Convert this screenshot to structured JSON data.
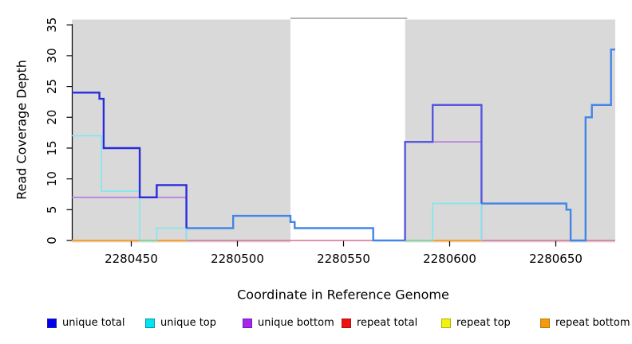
{
  "chart_data": {
    "type": "line",
    "title": "",
    "xlabel": "Coordinate in Reference Genome",
    "ylabel": "Read Coverage Depth",
    "x_range": [
      2280422,
      2280678
    ],
    "y_range": [
      0,
      36
    ],
    "x_ticks": [
      2280450,
      2280500,
      2280550,
      2280600,
      2280650
    ],
    "y_ticks": [
      0,
      5,
      10,
      15,
      20,
      25,
      30,
      35
    ],
    "grid": false,
    "legend_position": "bottom",
    "shaded_regions": [
      {
        "name": "covered-region-left",
        "x0": 2280422,
        "x1": 2280525,
        "color": "#d9d9d9"
      },
      {
        "name": "covered-region-right",
        "x0": 2280579,
        "x1": 2280678,
        "color": "#d9d9d9"
      }
    ],
    "gap_top_border": {
      "x0": 2280525,
      "x1": 2280580,
      "y": 36,
      "color": "#9a9a9a"
    },
    "series": [
      {
        "name": "repeat-total-baseline",
        "color": "#dd6a92",
        "width": 1.6,
        "points": [
          [
            2280422,
            0
          ],
          [
            2280678,
            0
          ]
        ]
      },
      {
        "name": "repeat-bottom-baseline-left",
        "color": "#ff9d1e",
        "width": 2,
        "points": [
          [
            2280422,
            0
          ],
          [
            2280476,
            0
          ]
        ]
      },
      {
        "name": "repeat-bottom-baseline-right",
        "color": "#ff9d1e",
        "width": 2,
        "points": [
          [
            2280592,
            0
          ],
          [
            2280615,
            0
          ]
        ]
      },
      {
        "name": "top-strand-overlap-baseline-left",
        "color": "#82d79e",
        "width": 2,
        "points": [
          [
            2280454,
            0
          ],
          [
            2280462,
            0
          ]
        ]
      },
      {
        "name": "top-strand-overlap-baseline-right",
        "color": "#82d79e",
        "width": 2,
        "points": [
          [
            2280579,
            0
          ],
          [
            2280592,
            0
          ]
        ]
      },
      {
        "name": "unique-bottom-left",
        "color": "#b478e0",
        "width": 1.6,
        "points": [
          [
            2280422,
            7
          ],
          [
            2280476,
            0
          ]
        ]
      },
      {
        "name": "unique-bottom-right",
        "color": "#b478e0",
        "width": 1.6,
        "points": [
          [
            2280579,
            0
          ],
          [
            2280579,
            16
          ],
          [
            2280615,
            0
          ]
        ]
      },
      {
        "name": "unique-top-left",
        "color": "#7de9ee",
        "width": 1.6,
        "points": [
          [
            2280422,
            17
          ],
          [
            2280436,
            8
          ],
          [
            2280454,
            0
          ]
        ]
      },
      {
        "name": "unique-top-mid",
        "color": "#7de9ee",
        "width": 1.6,
        "points": [
          [
            2280462,
            0
          ],
          [
            2280462,
            2
          ],
          [
            2280476,
            0
          ]
        ]
      },
      {
        "name": "unique-top-right",
        "color": "#7de9ee",
        "width": 1.6,
        "points": [
          [
            2280592,
            0
          ],
          [
            2280592,
            6
          ],
          [
            2280615,
            0
          ]
        ]
      },
      {
        "name": "total-coverage-mid",
        "color": "#4285e8",
        "width": 2.4,
        "points": [
          [
            2280476,
            2
          ],
          [
            2280498,
            4
          ],
          [
            2280525,
            3
          ],
          [
            2280527,
            2
          ],
          [
            2280564,
            0
          ],
          [
            2280579,
            0
          ]
        ]
      },
      {
        "name": "total-coverage-right",
        "color": "#4285e8",
        "width": 2.4,
        "points": [
          [
            2280615,
            6
          ],
          [
            2280655,
            5
          ],
          [
            2280657,
            0
          ],
          [
            2280664,
            20
          ],
          [
            2280667,
            22
          ],
          [
            2280676,
            31
          ],
          [
            2280678,
            31
          ]
        ]
      },
      {
        "name": "unique-total-left",
        "color": "#2a2ade",
        "width": 2.4,
        "points": [
          [
            2280422,
            24
          ],
          [
            2280435,
            23
          ],
          [
            2280437,
            15
          ],
          [
            2280454,
            7
          ],
          [
            2280462,
            9
          ],
          [
            2280476,
            2
          ]
        ]
      },
      {
        "name": "unique-total-right",
        "color": "#5656e0",
        "width": 2.4,
        "points": [
          [
            2280579,
            0
          ],
          [
            2280579,
            16
          ],
          [
            2280592,
            22
          ],
          [
            2280615,
            6
          ]
        ]
      }
    ],
    "legend": [
      {
        "label": "unique total",
        "fill": "#0000ee",
        "border": "#2222aa"
      },
      {
        "label": "unique top",
        "fill": "#00e5ee",
        "border": "#0092b4"
      },
      {
        "label": "unique bottom",
        "fill": "#a826ec",
        "border": "#7a1bb4"
      },
      {
        "label": "repeat total",
        "fill": "#ee1111",
        "border": "#aa1111"
      },
      {
        "label": "repeat top",
        "fill": "#f2f20c",
        "border": "#b0b010"
      },
      {
        "label": "repeat bottom",
        "fill": "#f59a0c",
        "border": "#b87708"
      }
    ]
  }
}
